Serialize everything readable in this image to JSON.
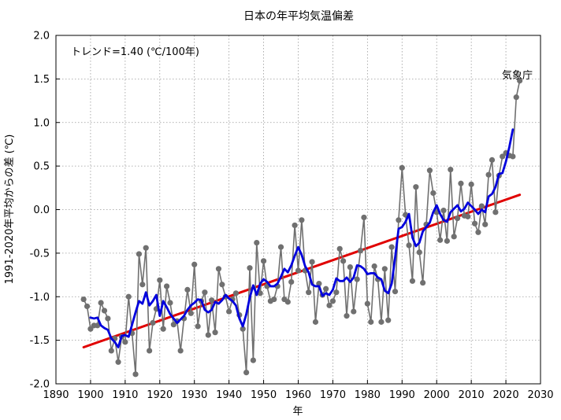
{
  "chart_data": {
    "type": "line",
    "title": "日本の年平均気温偏差",
    "xlabel": "年",
    "ylabel": "1991-2020年平均からの差 (℃)",
    "xlim": [
      1890,
      2030
    ],
    "ylim": [
      -2.0,
      2.0
    ],
    "xticks": [
      1890,
      1900,
      1910,
      1920,
      1930,
      1940,
      1950,
      1960,
      1970,
      1980,
      1990,
      2000,
      2010,
      2020,
      2030
    ],
    "yticks": [
      -2.0,
      -1.5,
      -1.0,
      -0.5,
      0.0,
      0.5,
      1.0,
      1.5,
      2.0
    ],
    "ytick_labels": [
      "-2.0",
      "-1.5",
      "-1.0",
      "-0.5",
      "0.0",
      "0.5",
      "1.0",
      "1.5",
      "2.0"
    ],
    "grid": true,
    "annotations": {
      "trend_text": "トレンド=1.40 (℃/100年)",
      "source_text": "気象庁"
    },
    "colors": {
      "annual": "#707070",
      "moving_avg": "#0000dd",
      "trend": "#e00000",
      "grid": "#999999"
    },
    "series": [
      {
        "type": "line-markers",
        "x": [
          1898,
          1899,
          1900,
          1901,
          1902,
          1903,
          1904,
          1905,
          1906,
          1907,
          1908,
          1909,
          1910,
          1911,
          1912,
          1913,
          1914,
          1915,
          1916,
          1917,
          1918,
          1919,
          1920,
          1921,
          1922,
          1923,
          1924,
          1925,
          1926,
          1927,
          1928,
          1929,
          1930,
          1931,
          1932,
          1933,
          1934,
          1935,
          1936,
          1937,
          1938,
          1939,
          1940,
          1941,
          1942,
          1943,
          1944,
          1945,
          1946,
          1947,
          1948,
          1949,
          1950,
          1951,
          1952,
          1953,
          1954,
          1955,
          1956,
          1957,
          1958,
          1959,
          1960,
          1961,
          1962,
          1963,
          1964,
          1965,
          1966,
          1967,
          1968,
          1969,
          1970,
          1971,
          1972,
          1973,
          1974,
          1975,
          1976,
          1977,
          1978,
          1979,
          1980,
          1981,
          1982,
          1983,
          1984,
          1985,
          1986,
          1987,
          1988,
          1989,
          1990,
          1991,
          1992,
          1993,
          1994,
          1995,
          1996,
          1997,
          1998,
          1999,
          2000,
          2001,
          2002,
          2003,
          2004,
          2005,
          2006,
          2007,
          2008,
          2009,
          2010,
          2011,
          2012,
          2013,
          2014,
          2015,
          2016,
          2017,
          2018,
          2019,
          2020,
          2021,
          2022,
          2023,
          2024
        ],
        "values": [
          -1.03,
          -1.11,
          -1.37,
          -1.33,
          -1.33,
          -1.07,
          -1.16,
          -1.25,
          -1.62,
          -1.48,
          -1.75,
          -1.46,
          -1.52,
          -1.0,
          -1.42,
          -1.89,
          -0.51,
          -0.86,
          -0.44,
          -1.62,
          -1.3,
          -1.14,
          -0.81,
          -1.37,
          -0.88,
          -1.07,
          -1.32,
          -1.28,
          -1.62,
          -1.25,
          -0.92,
          -1.19,
          -0.63,
          -1.34,
          -1.05,
          -0.95,
          -1.44,
          -1.04,
          -1.41,
          -0.68,
          -0.86,
          -1.0,
          -1.17,
          -1.03,
          -0.96,
          -1.21,
          -1.37,
          -1.87,
          -0.67,
          -1.73,
          -0.38,
          -0.96,
          -0.59,
          -0.88,
          -1.05,
          -1.03,
          -0.88,
          -0.43,
          -1.03,
          -1.06,
          -0.83,
          -0.18,
          -0.7,
          -0.12,
          -0.7,
          -0.95,
          -0.6,
          -1.29,
          -0.85,
          -0.98,
          -0.91,
          -1.1,
          -1.05,
          -0.95,
          -0.45,
          -0.59,
          -1.22,
          -0.66,
          -1.17,
          -0.8,
          -0.47,
          -0.09,
          -1.08,
          -1.29,
          -0.65,
          -0.8,
          -1.29,
          -0.68,
          -1.27,
          -0.43,
          -0.94,
          -0.12,
          0.48,
          -0.06,
          -0.41,
          -0.82,
          0.26,
          -0.49,
          -0.84,
          -0.17,
          0.45,
          0.19,
          -0.03,
          -0.35,
          -0.01,
          -0.36,
          0.46,
          -0.31,
          -0.1,
          0.3,
          -0.07,
          -0.08,
          0.29,
          -0.16,
          -0.26,
          0.04,
          -0.17,
          0.4,
          0.57,
          -0.03,
          0.39,
          0.61,
          0.65,
          0.62,
          0.61,
          1.29,
          1.48
        ]
      },
      {
        "type": "line",
        "x": [
          1900,
          1901,
          1902,
          1903,
          1904,
          1905,
          1906,
          1907,
          1908,
          1909,
          1910,
          1911,
          1912,
          1913,
          1914,
          1915,
          1916,
          1917,
          1918,
          1919,
          1920,
          1921,
          1922,
          1923,
          1924,
          1925,
          1926,
          1927,
          1928,
          1929,
          1930,
          1931,
          1932,
          1933,
          1934,
          1935,
          1936,
          1937,
          1938,
          1939,
          1940,
          1941,
          1942,
          1943,
          1944,
          1945,
          1946,
          1947,
          1948,
          1949,
          1950,
          1951,
          1952,
          1953,
          1954,
          1955,
          1956,
          1957,
          1958,
          1959,
          1960,
          1961,
          1962,
          1963,
          1964,
          1965,
          1966,
          1967,
          1968,
          1969,
          1970,
          1971,
          1972,
          1973,
          1974,
          1975,
          1976,
          1977,
          1978,
          1979,
          1980,
          1981,
          1982,
          1983,
          1984,
          1985,
          1986,
          1987,
          1988,
          1989,
          1990,
          1991,
          1992,
          1993,
          1994,
          1995,
          1996,
          1997,
          1998,
          1999,
          2000,
          2001,
          2002,
          2003,
          2004,
          2005,
          2006,
          2007,
          2008,
          2009,
          2010,
          2011,
          2012,
          2013,
          2014,
          2015,
          2016,
          2017,
          2018,
          2019,
          2020,
          2021,
          2022
        ],
        "values": [
          -1.24,
          -1.25,
          -1.24,
          -1.33,
          -1.36,
          -1.38,
          -1.48,
          -1.52,
          -1.58,
          -1.45,
          -1.44,
          -1.46,
          -1.32,
          -1.18,
          -1.05,
          -1.08,
          -0.95,
          -1.1,
          -1.05,
          -0.98,
          -1.22,
          -1.05,
          -1.12,
          -1.2,
          -1.25,
          -1.3,
          -1.26,
          -1.22,
          -1.15,
          -1.1,
          -1.07,
          -1.03,
          -1.04,
          -1.15,
          -1.18,
          -1.15,
          -1.06,
          -1.08,
          -1.04,
          -0.98,
          -1.02,
          -1.05,
          -1.1,
          -1.25,
          -1.34,
          -1.2,
          -1.01,
          -0.87,
          -0.98,
          -0.85,
          -0.8,
          -0.83,
          -0.88,
          -0.88,
          -0.85,
          -0.77,
          -0.68,
          -0.72,
          -0.64,
          -0.53,
          -0.43,
          -0.52,
          -0.65,
          -0.72,
          -0.86,
          -0.88,
          -0.88,
          -0.99,
          -0.96,
          -0.98,
          -0.92,
          -0.79,
          -0.82,
          -0.82,
          -0.78,
          -0.83,
          -0.78,
          -0.64,
          -0.65,
          -0.68,
          -0.74,
          -0.73,
          -0.73,
          -0.78,
          -0.8,
          -0.93,
          -0.96,
          -0.85,
          -0.55,
          -0.22,
          -0.2,
          -0.14,
          -0.05,
          -0.32,
          -0.42,
          -0.38,
          -0.25,
          -0.2,
          -0.15,
          -0.03,
          0.05,
          -0.05,
          -0.12,
          -0.14,
          -0.03,
          0.01,
          0.05,
          -0.02,
          0.01,
          0.08,
          0.04,
          0.0,
          -0.05,
          0.0,
          -0.03,
          0.15,
          0.18,
          0.26,
          0.41,
          0.42,
          0.55,
          0.72,
          0.92
        ]
      },
      {
        "type": "trend",
        "x": [
          1898,
          2024
        ],
        "values": [
          -1.58,
          0.17
        ]
      }
    ]
  }
}
